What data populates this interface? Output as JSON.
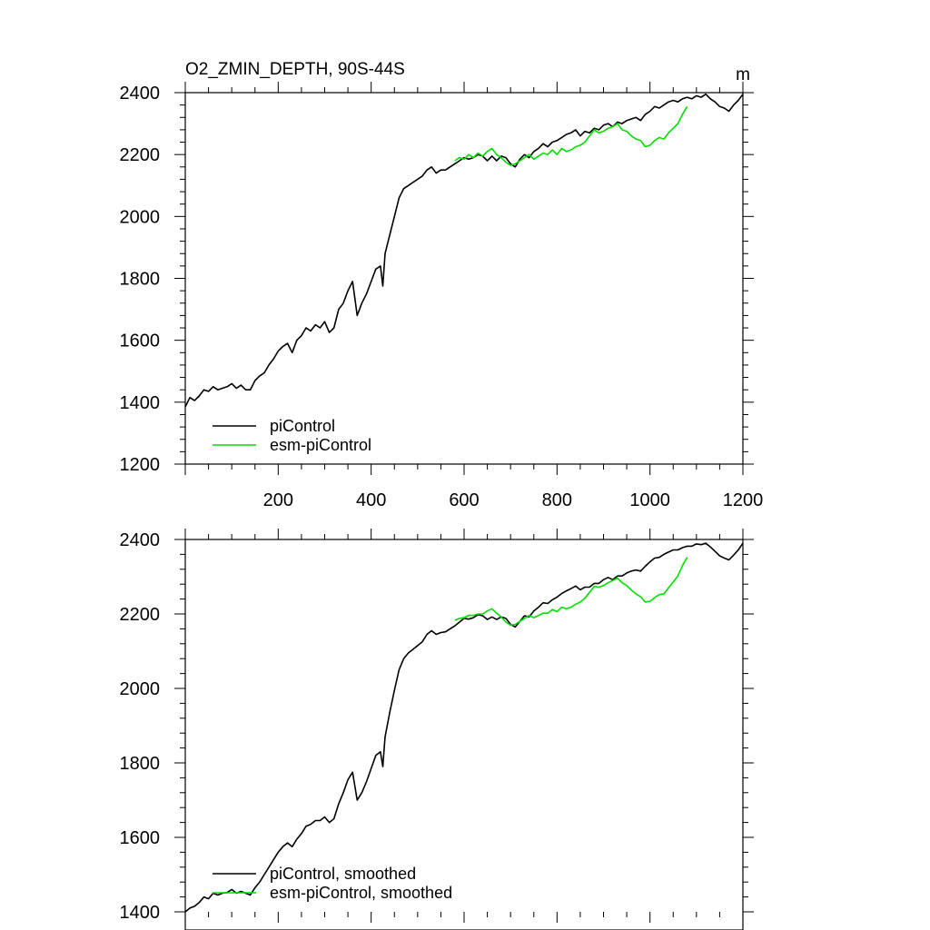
{
  "chart_data": [
    {
      "type": "line",
      "title": "O2_ZMIN_DEPTH, 90S-44S",
      "units": "m",
      "xlim": [
        0,
        1200
      ],
      "ylim": [
        1200,
        2400
      ],
      "x_ticks": [
        200,
        400,
        600,
        800,
        1000,
        1200
      ],
      "y_ticks": [
        1200,
        1400,
        1600,
        1800,
        2000,
        2200,
        2400
      ],
      "legend_position": "bottom-left",
      "grid": false,
      "series": [
        {
          "name": "piControl",
          "color": "#000000",
          "x": [
            0,
            10,
            20,
            30,
            40,
            50,
            60,
            70,
            80,
            90,
            100,
            110,
            120,
            130,
            140,
            150,
            160,
            170,
            180,
            190,
            200,
            210,
            220,
            230,
            240,
            250,
            260,
            270,
            280,
            290,
            300,
            310,
            320,
            330,
            340,
            350,
            360,
            370,
            380,
            390,
            400,
            410,
            420,
            425,
            430,
            440,
            450,
            460,
            470,
            480,
            490,
            500,
            510,
            520,
            530,
            540,
            550,
            560,
            570,
            580,
            590,
            600,
            610,
            620,
            630,
            640,
            650,
            660,
            670,
            680,
            690,
            700,
            710,
            720,
            730,
            740,
            750,
            760,
            770,
            780,
            790,
            800,
            810,
            820,
            830,
            840,
            850,
            860,
            870,
            880,
            890,
            900,
            910,
            920,
            930,
            940,
            950,
            960,
            970,
            980,
            990,
            1000,
            1010,
            1020,
            1030,
            1040,
            1050,
            1060,
            1070,
            1080,
            1090,
            1100,
            1110,
            1120,
            1130,
            1140,
            1150,
            1160,
            1170,
            1180,
            1190,
            1200
          ],
          "values": [
            1385,
            1415,
            1405,
            1420,
            1440,
            1435,
            1450,
            1440,
            1445,
            1450,
            1460,
            1445,
            1455,
            1440,
            1440,
            1470,
            1485,
            1495,
            1520,
            1540,
            1565,
            1580,
            1590,
            1560,
            1600,
            1615,
            1640,
            1630,
            1650,
            1640,
            1660,
            1625,
            1640,
            1700,
            1720,
            1760,
            1790,
            1680,
            1720,
            1750,
            1790,
            1830,
            1840,
            1775,
            1880,
            1940,
            2000,
            2060,
            2090,
            2100,
            2110,
            2120,
            2130,
            2150,
            2160,
            2140,
            2150,
            2150,
            2160,
            2170,
            2180,
            2190,
            2185,
            2190,
            2200,
            2195,
            2180,
            2195,
            2180,
            2195,
            2190,
            2170,
            2160,
            2185,
            2200,
            2190,
            2210,
            2220,
            2235,
            2225,
            2240,
            2245,
            2255,
            2265,
            2270,
            2280,
            2260,
            2275,
            2270,
            2285,
            2280,
            2295,
            2300,
            2290,
            2305,
            2300,
            2310,
            2315,
            2320,
            2310,
            2330,
            2340,
            2355,
            2350,
            2360,
            2370,
            2375,
            2370,
            2380,
            2385,
            2380,
            2390,
            2385,
            2395,
            2380,
            2370,
            2355,
            2350,
            2340,
            2360,
            2375,
            2395
          ]
        },
        {
          "name": "esm-piControl",
          "color": "#00e000",
          "x": [
            580,
            590,
            600,
            610,
            620,
            630,
            640,
            650,
            660,
            670,
            680,
            690,
            700,
            710,
            720,
            730,
            740,
            750,
            760,
            770,
            780,
            790,
            800,
            810,
            820,
            830,
            840,
            850,
            860,
            870,
            880,
            890,
            900,
            910,
            920,
            930,
            940,
            950,
            960,
            970,
            980,
            990,
            1000,
            1010,
            1020,
            1030,
            1040,
            1050,
            1060,
            1070,
            1080
          ],
          "values": [
            2180,
            2190,
            2185,
            2200,
            2190,
            2205,
            2195,
            2210,
            2220,
            2200,
            2190,
            2175,
            2165,
            2170,
            2180,
            2190,
            2200,
            2185,
            2195,
            2205,
            2200,
            2215,
            2200,
            2220,
            2210,
            2215,
            2225,
            2230,
            2240,
            2260,
            2280,
            2270,
            2275,
            2285,
            2290,
            2300,
            2280,
            2275,
            2260,
            2250,
            2245,
            2225,
            2230,
            2245,
            2255,
            2250,
            2270,
            2285,
            2300,
            2330,
            2355
          ]
        }
      ]
    },
    {
      "type": "line",
      "xlim": [
        0,
        1200
      ],
      "ylim": [
        1400,
        2400
      ],
      "y_ticks": [
        1400,
        1600,
        1800,
        2000,
        2200,
        2400
      ],
      "legend_position": "bottom-left",
      "grid": false,
      "series": [
        {
          "name": "piControl, smoothed",
          "color": "#000000",
          "x": [
            0,
            10,
            20,
            30,
            40,
            50,
            60,
            70,
            80,
            90,
            100,
            110,
            120,
            130,
            140,
            150,
            160,
            170,
            180,
            190,
            200,
            210,
            220,
            230,
            240,
            250,
            260,
            270,
            280,
            290,
            300,
            310,
            320,
            330,
            340,
            350,
            360,
            370,
            380,
            390,
            400,
            410,
            420,
            425,
            430,
            440,
            450,
            460,
            470,
            480,
            490,
            500,
            510,
            520,
            530,
            540,
            550,
            560,
            570,
            580,
            590,
            600,
            610,
            620,
            630,
            640,
            650,
            660,
            670,
            680,
            690,
            700,
            710,
            720,
            730,
            740,
            750,
            760,
            770,
            780,
            790,
            800,
            810,
            820,
            830,
            840,
            850,
            860,
            870,
            880,
            890,
            900,
            910,
            920,
            930,
            940,
            950,
            960,
            970,
            980,
            990,
            1000,
            1010,
            1020,
            1030,
            1040,
            1050,
            1060,
            1070,
            1080,
            1090,
            1100,
            1110,
            1120,
            1130,
            1140,
            1150,
            1160,
            1170,
            1180,
            1190,
            1200
          ],
          "values": [
            1395,
            1410,
            1415,
            1425,
            1440,
            1435,
            1450,
            1445,
            1450,
            1452,
            1460,
            1450,
            1455,
            1450,
            1445,
            1465,
            1480,
            1500,
            1520,
            1540,
            1560,
            1575,
            1585,
            1575,
            1595,
            1610,
            1630,
            1635,
            1645,
            1645,
            1655,
            1640,
            1650,
            1690,
            1720,
            1755,
            1775,
            1700,
            1720,
            1750,
            1785,
            1820,
            1830,
            1790,
            1870,
            1935,
            1995,
            2050,
            2080,
            2095,
            2105,
            2115,
            2125,
            2145,
            2155,
            2145,
            2150,
            2152,
            2160,
            2168,
            2178,
            2188,
            2186,
            2190,
            2198,
            2195,
            2185,
            2192,
            2185,
            2192,
            2188,
            2172,
            2165,
            2180,
            2195,
            2192,
            2208,
            2218,
            2230,
            2228,
            2238,
            2245,
            2255,
            2262,
            2268,
            2275,
            2265,
            2272,
            2272,
            2282,
            2282,
            2292,
            2298,
            2292,
            2302,
            2302,
            2310,
            2315,
            2318,
            2315,
            2328,
            2340,
            2350,
            2352,
            2360,
            2366,
            2372,
            2372,
            2378,
            2382,
            2382,
            2388,
            2386,
            2390,
            2380,
            2368,
            2356,
            2350,
            2345,
            2358,
            2372,
            2390
          ]
        },
        {
          "name": "esm-piControl, smoothed",
          "color": "#00e000",
          "x": [
            580,
            590,
            600,
            610,
            620,
            630,
            640,
            650,
            660,
            670,
            680,
            690,
            700,
            710,
            720,
            730,
            740,
            750,
            760,
            770,
            780,
            790,
            800,
            810,
            820,
            830,
            840,
            850,
            860,
            870,
            880,
            890,
            900,
            910,
            920,
            930,
            940,
            950,
            960,
            970,
            980,
            990,
            1000,
            1010,
            1020,
            1030,
            1040,
            1050,
            1060,
            1070,
            1080
          ],
          "values": [
            2183,
            2188,
            2190,
            2196,
            2196,
            2200,
            2200,
            2208,
            2214,
            2202,
            2192,
            2178,
            2170,
            2172,
            2180,
            2188,
            2196,
            2190,
            2196,
            2202,
            2202,
            2212,
            2206,
            2218,
            2214,
            2218,
            2226,
            2232,
            2242,
            2258,
            2274,
            2272,
            2276,
            2284,
            2290,
            2296,
            2284,
            2276,
            2264,
            2254,
            2246,
            2232,
            2234,
            2244,
            2252,
            2254,
            2270,
            2286,
            2302,
            2330,
            2352
          ]
        }
      ]
    }
  ]
}
